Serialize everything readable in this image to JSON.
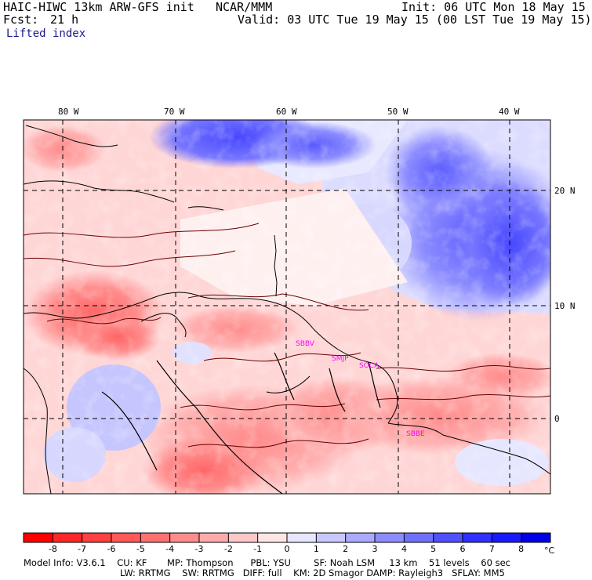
{
  "header": {
    "model": "HAIC-HIWC 13km ARW-GFS init",
    "org": "NCAR/MMM",
    "init": "Init: 06 UTC Mon 18 May 15",
    "fcst_label": "Fcst:",
    "fcst_value": "21 h",
    "valid": "Valid: 03 UTC Tue 19 May 15 (00 LST Tue 19 May 15)",
    "field": "Lifted index"
  },
  "map": {
    "lon_labels": [
      "80 W",
      "70 W",
      "60 W",
      "50 W",
      "40 W"
    ],
    "lat_labels": [
      "20 N",
      "10 N",
      "0"
    ],
    "stations": [
      "SBBV",
      "SMJP",
      "SOCA",
      "SBBE"
    ],
    "station_color": "#ff00ff"
  },
  "colorbar": {
    "ticks": [
      "-8",
      "-7",
      "-6",
      "-5",
      "-4",
      "-3",
      "-2",
      "-1",
      "0",
      "1",
      "2",
      "3",
      "4",
      "5",
      "6",
      "7",
      "8"
    ],
    "unit": "°C",
    "colors": [
      "#ff0000",
      "#ff2828",
      "#ff4040",
      "#ff5959",
      "#ff7070",
      "#ff8c8c",
      "#ffaaaa",
      "#ffc8c8",
      "#ffe6e6",
      "#e6e6ff",
      "#c8c8ff",
      "#aaaaff",
      "#8c8cff",
      "#7070ff",
      "#5050ff",
      "#3030ff",
      "#1a1aff",
      "#0000e6"
    ]
  },
  "footer": {
    "line1": "Model Info: V3.6.1    CU: KF       MP: Thompson      PBL: YSU        SF: Noah LSM     13 km    51 levels    60 sec",
    "line2": "LW: RRTMG    SW: RRTMG   DIFF: full    KM: 2D Smagor DAMP: Rayleigh3   SFLAY: MM5"
  }
}
